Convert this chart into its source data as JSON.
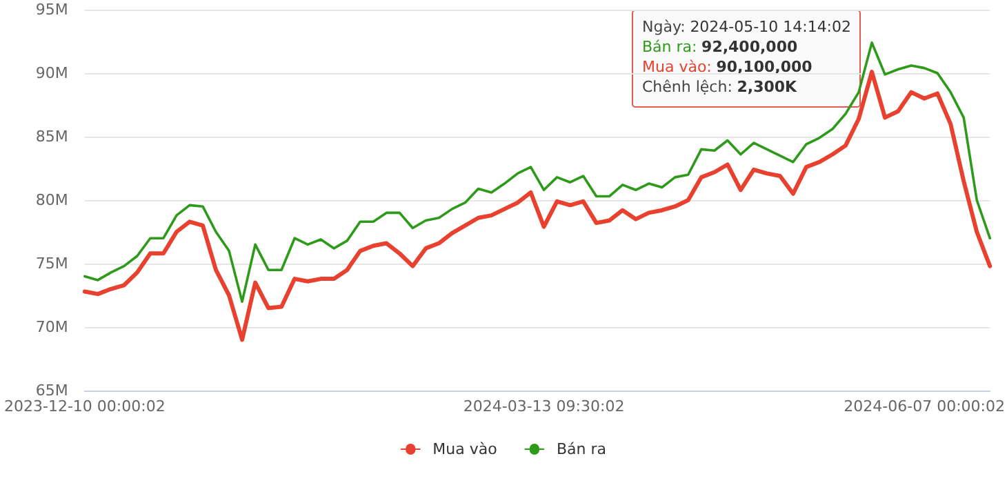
{
  "chart_data": {
    "type": "line",
    "categories": [
      "2023-12-10 00:00:02",
      null,
      null,
      null,
      null,
      null,
      null,
      null,
      null,
      null,
      null,
      null,
      null,
      null,
      null,
      null,
      null,
      null,
      null,
      null,
      null,
      null,
      null,
      null,
      null,
      null,
      null,
      null,
      null,
      null,
      null,
      null,
      null,
      null,
      null,
      "2024-03-13 09:30:02",
      null,
      null,
      null,
      null,
      null,
      null,
      null,
      null,
      null,
      null,
      null,
      null,
      null,
      null,
      null,
      null,
      null,
      null,
      null,
      null,
      null,
      null,
      null,
      null,
      null,
      null,
      null,
      null,
      "2024-06-07 00:00:02",
      null,
      null,
      null,
      null,
      null
    ],
    "series": [
      {
        "name": "Mua vào",
        "color": "#e8412f",
        "values": [
          72.8,
          72.6,
          73.0,
          73.3,
          74.3,
          75.8,
          75.8,
          77.5,
          78.3,
          78.0,
          74.5,
          72.5,
          69.0,
          73.5,
          71.5,
          71.6,
          73.8,
          73.6,
          73.8,
          73.8,
          74.5,
          76.0,
          76.4,
          76.6,
          75.8,
          74.8,
          76.2,
          76.6,
          77.4,
          78.0,
          78.6,
          78.8,
          79.3,
          79.8,
          80.6,
          77.9,
          79.9,
          79.6,
          79.9,
          78.2,
          78.4,
          79.2,
          78.5,
          79.0,
          79.2,
          79.5,
          80.0,
          81.8,
          82.2,
          82.8,
          80.8,
          82.4,
          82.1,
          81.9,
          80.5,
          82.6,
          83.0,
          83.6,
          84.3,
          86.4,
          90.1,
          86.5,
          87.0,
          88.5,
          88.0,
          88.4,
          86.0,
          81.5,
          77.5,
          74.8
        ]
      },
      {
        "name": "Bán ra",
        "color": "#2e9a1a",
        "values": [
          74.0,
          73.7,
          74.3,
          74.8,
          75.6,
          77.0,
          77.0,
          78.8,
          79.6,
          79.5,
          77.5,
          76.0,
          72.0,
          76.5,
          74.5,
          74.5,
          77.0,
          76.5,
          76.9,
          76.2,
          76.8,
          78.3,
          78.3,
          79.0,
          79.0,
          77.8,
          78.4,
          78.6,
          79.3,
          79.8,
          80.9,
          80.6,
          81.3,
          82.1,
          82.6,
          80.8,
          81.8,
          81.4,
          81.9,
          80.3,
          80.3,
          81.2,
          80.8,
          81.3,
          81.0,
          81.8,
          82.0,
          84.0,
          83.9,
          84.7,
          83.6,
          84.5,
          84.0,
          83.5,
          83.0,
          84.4,
          84.9,
          85.6,
          86.8,
          88.5,
          92.4,
          89.9,
          90.3,
          90.6,
          90.4,
          90.0,
          88.5,
          86.5,
          80.0,
          77.0
        ]
      }
    ],
    "ylim": [
      65,
      95
    ],
    "yticks": [
      {
        "value": 65,
        "label": "65M"
      },
      {
        "value": 70,
        "label": "70M"
      },
      {
        "value": 75,
        "label": "75M"
      },
      {
        "value": 80,
        "label": "80M"
      },
      {
        "value": 85,
        "label": "85M"
      },
      {
        "value": 90,
        "label": "90M"
      },
      {
        "value": 95,
        "label": "95M"
      }
    ],
    "grid": "y",
    "legend": "bottom",
    "marker": "none",
    "line_style": "solid",
    "annotations": [
      "Ngày: 2024-05-10 14:14:02",
      "Bán ra: 92,400,000",
      "Mua vào: 90,100,000",
      "Chênh lệch: 2,300K"
    ]
  }
}
